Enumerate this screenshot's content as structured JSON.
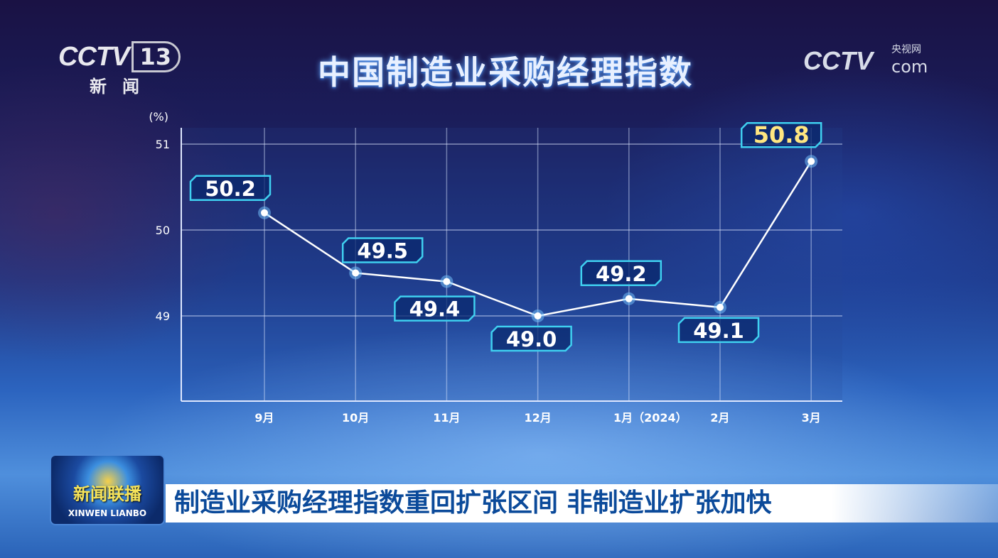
{
  "channel_logo": {
    "brand": "CCTV",
    "number": "13",
    "subtitle": "新闻"
  },
  "watermark": {
    "brand": "CCTV",
    "cn": "央视网",
    "com": "com"
  },
  "program": {
    "cn": "新闻联播",
    "en": "XINWEN LIANBO"
  },
  "headline": "制造业采购经理指数重回扩张区间 非制造业扩张加快",
  "chart_data": {
    "type": "line",
    "title": "中国制造业采购经理指数",
    "ylabel": "(%)",
    "xlabel": "",
    "categories": [
      "9月",
      "10月",
      "11月",
      "12月",
      "1月（2024）",
      "2月",
      "3月"
    ],
    "values": [
      50.2,
      49.5,
      49.4,
      49.0,
      49.2,
      49.1,
      50.8
    ],
    "data_labels": [
      "50.2",
      "49.5",
      "49.4",
      "49.0",
      "49.2",
      "49.1",
      "50.8"
    ],
    "yticks": [
      "49",
      "50",
      "51"
    ],
    "ylim": [
      48,
      51.2
    ],
    "grid": true,
    "colors": {
      "line": "#ffffff",
      "label_border": "#3fd0f0",
      "highlight": "#ffe680",
      "text": "#ffffff"
    }
  }
}
